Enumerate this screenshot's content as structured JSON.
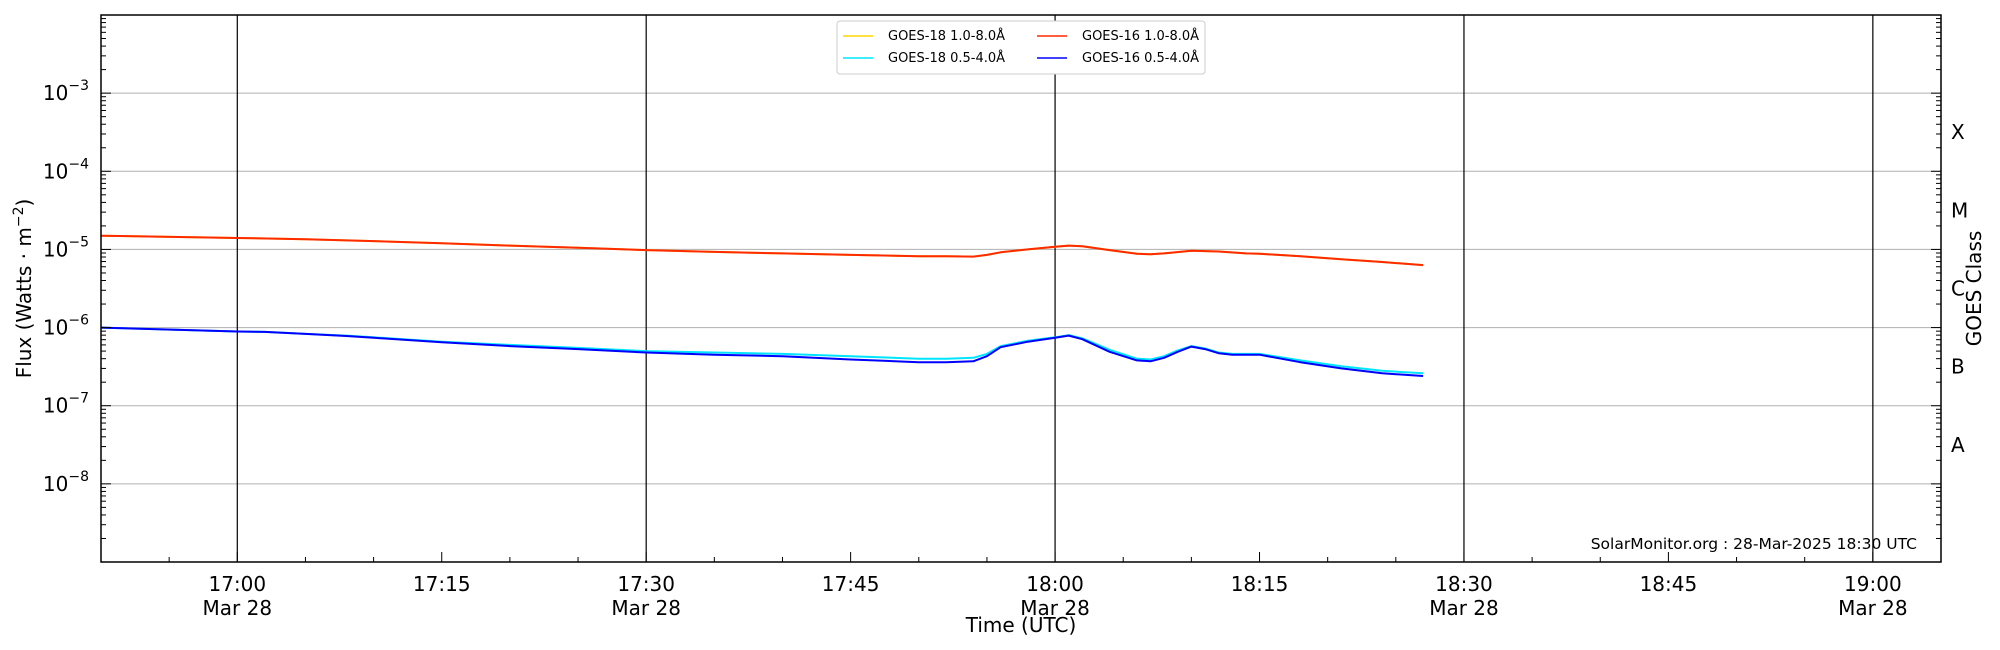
{
  "chart_data": {
    "type": "line",
    "xlabel": "Time (UTC)",
    "ylabel_main": "Flux (Watts · m",
    "ylabel_sup": "−2",
    "ylabel_close": ")",
    "y2label": "GOES Class",
    "y_scale": "log",
    "ylim": [
      1e-09,
      0.01
    ],
    "xlim": [
      "16:50",
      "19:05"
    ],
    "grid": "horizontal",
    "legend_position": "top-center",
    "x_ticks": [
      {
        "time": "17:00",
        "line1": "17:00",
        "line2": "Mar 28"
      },
      {
        "time": "17:15",
        "line1": "17:15",
        "line2": ""
      },
      {
        "time": "17:30",
        "line1": "17:30",
        "line2": "Mar 28"
      },
      {
        "time": "17:45",
        "line1": "17:45",
        "line2": ""
      },
      {
        "time": "18:00",
        "line1": "18:00",
        "line2": "Mar 28"
      },
      {
        "time": "18:15",
        "line1": "18:15",
        "line2": ""
      },
      {
        "time": "18:30",
        "line1": "18:30",
        "line2": "Mar 28"
      },
      {
        "time": "18:45",
        "line1": "18:45",
        "line2": ""
      },
      {
        "time": "19:00",
        "line1": "19:00",
        "line2": "Mar 28"
      }
    ],
    "vertical_lines": [
      "17:00",
      "17:30",
      "18:00",
      "18:30",
      "19:00"
    ],
    "y_ticks": [
      {
        "value": 1e-08,
        "base": "10",
        "exp": "−8"
      },
      {
        "value": 1e-07,
        "base": "10",
        "exp": "−7"
      },
      {
        "value": 1e-06,
        "base": "10",
        "exp": "−6"
      },
      {
        "value": 1e-05,
        "base": "10",
        "exp": "−5"
      },
      {
        "value": 0.0001,
        "base": "10",
        "exp": "−4"
      },
      {
        "value": 0.001,
        "base": "10",
        "exp": "−3"
      }
    ],
    "goes_classes": [
      {
        "label": "A",
        "value": 3.16e-08
      },
      {
        "label": "B",
        "value": 3.16e-07
      },
      {
        "label": "C",
        "value": 3.16e-06
      },
      {
        "label": "M",
        "value": 3.16e-05
      },
      {
        "label": "X",
        "value": 0.000316
      }
    ],
    "series": [
      {
        "name": "GOES-18 1.0-8.0Å",
        "color": "#ffd700",
        "points": [
          [
            "16:50",
            1.5e-05
          ],
          [
            "17:00",
            1.4e-05
          ],
          [
            "17:05",
            1.35e-05
          ],
          [
            "17:10",
            1.28e-05
          ],
          [
            "17:15",
            1.2e-05
          ],
          [
            "17:20",
            1.12e-05
          ],
          [
            "17:25",
            1.05e-05
          ],
          [
            "17:30",
            9.8e-06
          ],
          [
            "17:35",
            9.3e-06
          ],
          [
            "17:40",
            8.9e-06
          ],
          [
            "17:45",
            8.5e-06
          ],
          [
            "17:50",
            8.2e-06
          ],
          [
            "17:52",
            8.2e-06
          ],
          [
            "17:54",
            8.1e-06
          ],
          [
            "17:55",
            8.5e-06
          ],
          [
            "17:56",
            9.2e-06
          ],
          [
            "17:58",
            1e-05
          ],
          [
            "18:00",
            1.08e-05
          ],
          [
            "18:01",
            1.12e-05
          ],
          [
            "18:02",
            1.1e-05
          ],
          [
            "18:04",
            9.8e-06
          ],
          [
            "18:06",
            8.8e-06
          ],
          [
            "18:07",
            8.7e-06
          ],
          [
            "18:08",
            8.9e-06
          ],
          [
            "18:10",
            9.6e-06
          ],
          [
            "18:12",
            9.4e-06
          ],
          [
            "18:14",
            8.9e-06
          ],
          [
            "18:15",
            8.8e-06
          ],
          [
            "18:18",
            8.2e-06
          ],
          [
            "18:21",
            7.5e-06
          ],
          [
            "18:24",
            6.9e-06
          ],
          [
            "18:27",
            6.3e-06
          ]
        ]
      },
      {
        "name": "GOES-16 1.0-8.0Å",
        "color": "#ff2a00",
        "points": [
          [
            "16:50",
            1.5e-05
          ],
          [
            "17:00",
            1.4e-05
          ],
          [
            "17:05",
            1.35e-05
          ],
          [
            "17:10",
            1.28e-05
          ],
          [
            "17:15",
            1.2e-05
          ],
          [
            "17:20",
            1.12e-05
          ],
          [
            "17:25",
            1.05e-05
          ],
          [
            "17:30",
            9.8e-06
          ],
          [
            "17:35",
            9.3e-06
          ],
          [
            "17:40",
            8.9e-06
          ],
          [
            "17:45",
            8.5e-06
          ],
          [
            "17:50",
            8.2e-06
          ],
          [
            "17:52",
            8.2e-06
          ],
          [
            "17:54",
            8.1e-06
          ],
          [
            "17:55",
            8.5e-06
          ],
          [
            "17:56",
            9.2e-06
          ],
          [
            "17:58",
            1e-05
          ],
          [
            "18:00",
            1.08e-05
          ],
          [
            "18:01",
            1.12e-05
          ],
          [
            "18:02",
            1.1e-05
          ],
          [
            "18:04",
            9.8e-06
          ],
          [
            "18:06",
            8.8e-06
          ],
          [
            "18:07",
            8.7e-06
          ],
          [
            "18:08",
            8.9e-06
          ],
          [
            "18:10",
            9.6e-06
          ],
          [
            "18:12",
            9.4e-06
          ],
          [
            "18:14",
            8.9e-06
          ],
          [
            "18:15",
            8.8e-06
          ],
          [
            "18:18",
            8.2e-06
          ],
          [
            "18:21",
            7.5e-06
          ],
          [
            "18:24",
            6.9e-06
          ],
          [
            "18:27",
            6.3e-06
          ]
        ]
      },
      {
        "name": "GOES-18 0.5-4.0Å",
        "color": "#00e5ff",
        "points": [
          [
            "16:50",
            1e-06
          ],
          [
            "17:00",
            8.9e-07
          ],
          [
            "17:02",
            8.8e-07
          ],
          [
            "17:05",
            8.3e-07
          ],
          [
            "17:08",
            7.9e-07
          ],
          [
            "17:10",
            7.5e-07
          ],
          [
            "17:15",
            6.6e-07
          ],
          [
            "17:20",
            6e-07
          ],
          [
            "17:25",
            5.5e-07
          ],
          [
            "17:30",
            5e-07
          ],
          [
            "17:35",
            4.8e-07
          ],
          [
            "17:40",
            4.6e-07
          ],
          [
            "17:45",
            4.3e-07
          ],
          [
            "17:50",
            4e-07
          ],
          [
            "17:52",
            4e-07
          ],
          [
            "17:54",
            4.1e-07
          ],
          [
            "17:55",
            4.6e-07
          ],
          [
            "17:56",
            5.8e-07
          ],
          [
            "17:58",
            6.8e-07
          ],
          [
            "18:00",
            7.5e-07
          ],
          [
            "18:01",
            8e-07
          ],
          [
            "18:02",
            7.3e-07
          ],
          [
            "18:04",
            5.2e-07
          ],
          [
            "18:06",
            4e-07
          ],
          [
            "18:07",
            3.9e-07
          ],
          [
            "18:08",
            4.3e-07
          ],
          [
            "18:09",
            5.1e-07
          ],
          [
            "18:10",
            5.8e-07
          ],
          [
            "18:11",
            5.4e-07
          ],
          [
            "18:12",
            4.8e-07
          ],
          [
            "18:13",
            4.6e-07
          ],
          [
            "18:15",
            4.6e-07
          ],
          [
            "18:18",
            3.8e-07
          ],
          [
            "18:21",
            3.2e-07
          ],
          [
            "18:24",
            2.8e-07
          ],
          [
            "18:27",
            2.6e-07
          ]
        ]
      },
      {
        "name": "GOES-16 0.5-4.0Å",
        "color": "#0000ff",
        "points": [
          [
            "16:50",
            1e-06
          ],
          [
            "17:00",
            8.9e-07
          ],
          [
            "17:02",
            8.8e-07
          ],
          [
            "17:05",
            8.3e-07
          ],
          [
            "17:08",
            7.8e-07
          ],
          [
            "17:10",
            7.4e-07
          ],
          [
            "17:15",
            6.5e-07
          ],
          [
            "17:20",
            5.8e-07
          ],
          [
            "17:25",
            5.3e-07
          ],
          [
            "17:30",
            4.8e-07
          ],
          [
            "17:35",
            4.5e-07
          ],
          [
            "17:40",
            4.3e-07
          ],
          [
            "17:45",
            3.9e-07
          ],
          [
            "17:50",
            3.6e-07
          ],
          [
            "17:52",
            3.6e-07
          ],
          [
            "17:54",
            3.7e-07
          ],
          [
            "17:55",
            4.3e-07
          ],
          [
            "17:56",
            5.6e-07
          ],
          [
            "17:58",
            6.6e-07
          ],
          [
            "18:00",
            7.4e-07
          ],
          [
            "18:01",
            7.9e-07
          ],
          [
            "18:02",
            7.1e-07
          ],
          [
            "18:04",
            4.9e-07
          ],
          [
            "18:06",
            3.8e-07
          ],
          [
            "18:07",
            3.7e-07
          ],
          [
            "18:08",
            4.1e-07
          ],
          [
            "18:09",
            4.9e-07
          ],
          [
            "18:10",
            5.7e-07
          ],
          [
            "18:11",
            5.3e-07
          ],
          [
            "18:12",
            4.7e-07
          ],
          [
            "18:13",
            4.5e-07
          ],
          [
            "18:15",
            4.5e-07
          ],
          [
            "18:18",
            3.6e-07
          ],
          [
            "18:21",
            3e-07
          ],
          [
            "18:24",
            2.6e-07
          ],
          [
            "18:27",
            2.4e-07
          ]
        ]
      }
    ],
    "legend_order": [
      0,
      2,
      1,
      3
    ],
    "watermark": "SolarMonitor.org : 28-Mar-2025 18:30 UTC"
  }
}
